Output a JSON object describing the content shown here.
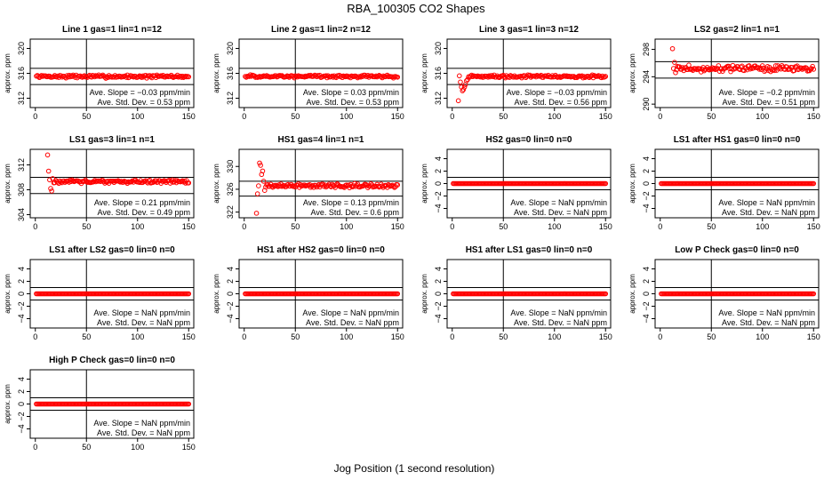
{
  "figure": {
    "title": "RBA_100305  CO2 Shapes",
    "xlabel": "Jog Position (1 second resolution)"
  },
  "colors": {
    "points": "#ff0000",
    "axes": "#000000"
  },
  "chart_data": [
    {
      "type": "scatter",
      "title": "Line 1 gas=1 lin=1 n=12",
      "ylabel": "approx. ppm",
      "xlim": [
        -5,
        155
      ],
      "xticks": [
        0,
        50,
        100,
        150
      ],
      "ylim": [
        310.5,
        321.5
      ],
      "yticks": [
        312,
        316,
        320
      ],
      "hlines": [
        316.8,
        314.2
      ],
      "vline": 50,
      "slope_text": "Ave. Slope = -0.03 ppm/min",
      "std_text": "Ave. Std. Dev. = 0.53 ppm",
      "series": [
        {
          "x_start": 1,
          "x_end": 150,
          "mean": 315.5,
          "noise": 0.3
        }
      ]
    },
    {
      "type": "scatter",
      "title": "Line 2 gas=1 lin=2 n=12",
      "ylabel": "approx. ppm",
      "xlim": [
        -5,
        155
      ],
      "xticks": [
        0,
        50,
        100,
        150
      ],
      "ylim": [
        310.5,
        321.5
      ],
      "yticks": [
        312,
        316,
        320
      ],
      "hlines": [
        316.8,
        314.2
      ],
      "vline": 50,
      "slope_text": "Ave. Slope = 0.03 ppm/min",
      "std_text": "Ave. Std. Dev. = 0.53 ppm",
      "series": [
        {
          "x_start": 1,
          "x_end": 150,
          "mean": 315.5,
          "noise": 0.28
        }
      ]
    },
    {
      "type": "scatter",
      "title": "Line 3 gas=1 lin=3 n=12",
      "ylabel": "approx. ppm",
      "xlim": [
        -5,
        155
      ],
      "xticks": [
        0,
        50,
        100,
        150
      ],
      "ylim": [
        310.5,
        321.5
      ],
      "yticks": [
        312,
        316,
        320
      ],
      "hlines": [
        316.8,
        314.2
      ],
      "vline": 50,
      "slope_text": "Ave. Slope = -0.03 ppm/min",
      "std_text": "Ave. Std. Dev. = 0.56 ppm",
      "series": [
        {
          "x_start": 6,
          "x_end": 150,
          "mean": 315.5,
          "noise": 0.28,
          "lead": [
            311.6,
            315.6,
            314.6,
            313.8,
            313.2,
            313.4,
            313.8,
            314.2,
            314.8,
            315.0
          ]
        }
      ]
    },
    {
      "type": "scatter",
      "title": "LS2 gas=2 lin=1 n=1",
      "ylabel": "approx. ppm",
      "xlim": [
        -5,
        155
      ],
      "xticks": [
        0,
        50,
        100,
        150
      ],
      "ylim": [
        289.5,
        299.5
      ],
      "yticks": [
        290,
        294,
        298
      ],
      "hlines": [
        296.2,
        293.8
      ],
      "vline": 50,
      "slope_text": "Ave. Slope = -0.2 ppm/min",
      "std_text": "Ave. Std. Dev. = 0.51 ppm",
      "series": [
        {
          "x_start": 12,
          "x_end": 150,
          "mean": 295.2,
          "noise": 0.55,
          "lead": [
            298.1,
            295.2,
            296.1,
            294.6
          ]
        }
      ]
    },
    {
      "type": "scatter",
      "title": "LS1 gas=3 lin=1 n=1",
      "ylabel": "approx. ppm",
      "xlim": [
        -5,
        155
      ],
      "xticks": [
        0,
        50,
        100,
        150
      ],
      "ylim": [
        303.5,
        314.5
      ],
      "yticks": [
        304,
        308,
        312
      ],
      "hlines": [
        310.0,
        307.4
      ],
      "vline": 50,
      "slope_text": "Ave. Slope = 0.21 ppm/min",
      "std_text": "Ave. Std. Dev. = 0.49 ppm",
      "series": [
        {
          "x_start": 12,
          "x_end": 150,
          "mean": 309.3,
          "noise": 0.35,
          "lead": [
            313.6,
            311.0,
            309.6,
            308.2,
            307.8,
            309.8
          ]
        }
      ]
    },
    {
      "type": "scatter",
      "title": "HS1 gas=4 lin=1 n=1",
      "ylabel": "approx. ppm",
      "xlim": [
        -5,
        155
      ],
      "xticks": [
        0,
        50,
        100,
        150
      ],
      "ylim": [
        321,
        333
      ],
      "yticks": [
        322,
        326,
        330
      ],
      "hlines": [
        327.4,
        324.8
      ],
      "vline": 50,
      "slope_text": "Ave. Slope = 0.13 ppm/min",
      "std_text": "Ave. Std. Dev. = 0.6 ppm",
      "series": [
        {
          "x_start": 12,
          "x_end": 150,
          "mean": 326.6,
          "noise": 0.42,
          "lead": [
            321.8,
            325.2,
            326.6,
            330.6,
            330.2,
            328.6,
            329.2,
            327.4,
            325.8,
            326.4
          ]
        }
      ]
    },
    {
      "type": "scatter",
      "title": "HS2 gas=0 lin=0 n=0",
      "ylabel": "approx. ppm",
      "xlim": [
        -5,
        155
      ],
      "xticks": [
        0,
        50,
        100,
        150
      ],
      "ylim": [
        -5.5,
        5.5
      ],
      "yticks": [
        -4,
        -2,
        0,
        2,
        4
      ],
      "hlines": [
        1,
        -1
      ],
      "vline": 50,
      "slope_text": "Ave. Slope = NaN ppm/min",
      "std_text": "Ave. Std. Dev. = NaN ppm",
      "series": [
        {
          "x_start": 1,
          "x_end": 150,
          "mean": 0,
          "noise": 0
        }
      ]
    },
    {
      "type": "scatter",
      "title": "LS1 after HS1 gas=0 lin=0 n=0",
      "ylabel": "approx. ppm",
      "xlim": [
        -5,
        155
      ],
      "xticks": [
        0,
        50,
        100,
        150
      ],
      "ylim": [
        -5.5,
        5.5
      ],
      "yticks": [
        -4,
        -2,
        0,
        2,
        4
      ],
      "hlines": [
        1,
        -1
      ],
      "vline": 50,
      "slope_text": "Ave. Slope = NaN ppm/min",
      "std_text": "Ave. Std. Dev. = NaN ppm",
      "series": [
        {
          "x_start": 1,
          "x_end": 150,
          "mean": 0,
          "noise": 0
        }
      ]
    },
    {
      "type": "scatter",
      "title": "LS1 after LS2 gas=0 lin=0 n=0",
      "ylabel": "approx. ppm",
      "xlim": [
        -5,
        155
      ],
      "xticks": [
        0,
        50,
        100,
        150
      ],
      "ylim": [
        -5.5,
        5.5
      ],
      "yticks": [
        -4,
        -2,
        0,
        2,
        4
      ],
      "hlines": [
        1,
        -1
      ],
      "vline": 50,
      "slope_text": "Ave. Slope = NaN ppm/min",
      "std_text": "Ave. Std. Dev. = NaN ppm",
      "series": [
        {
          "x_start": 1,
          "x_end": 150,
          "mean": 0,
          "noise": 0
        }
      ]
    },
    {
      "type": "scatter",
      "title": "HS1 after HS2 gas=0 lin=0 n=0",
      "ylabel": "approx. ppm",
      "xlim": [
        -5,
        155
      ],
      "xticks": [
        0,
        50,
        100,
        150
      ],
      "ylim": [
        -5.5,
        5.5
      ],
      "yticks": [
        -4,
        -2,
        0,
        2,
        4
      ],
      "hlines": [
        1,
        -1
      ],
      "vline": 50,
      "slope_text": "Ave. Slope = NaN ppm/min",
      "std_text": "Ave. Std. Dev. = NaN ppm",
      "series": [
        {
          "x_start": 1,
          "x_end": 150,
          "mean": 0,
          "noise": 0
        }
      ]
    },
    {
      "type": "scatter",
      "title": "HS1 after LS1 gas=0 lin=0 n=0",
      "ylabel": "approx. ppm",
      "xlim": [
        -5,
        155
      ],
      "xticks": [
        0,
        50,
        100,
        150
      ],
      "ylim": [
        -5.5,
        5.5
      ],
      "yticks": [
        -4,
        -2,
        0,
        2,
        4
      ],
      "hlines": [
        1,
        -1
      ],
      "vline": 50,
      "slope_text": "Ave. Slope = NaN ppm/min",
      "std_text": "Ave. Std. Dev. = NaN ppm",
      "series": [
        {
          "x_start": 1,
          "x_end": 150,
          "mean": 0,
          "noise": 0
        }
      ]
    },
    {
      "type": "scatter",
      "title": "Low P Check gas=0 lin=0 n=0",
      "ylabel": "approx. ppm",
      "xlim": [
        -5,
        155
      ],
      "xticks": [
        0,
        50,
        100,
        150
      ],
      "ylim": [
        -5.5,
        5.5
      ],
      "yticks": [
        -4,
        -2,
        0,
        2,
        4
      ],
      "hlines": [
        1,
        -1
      ],
      "vline": 50,
      "slope_text": "Ave. Slope = NaN ppm/min",
      "std_text": "Ave. Std. Dev. = NaN ppm",
      "series": [
        {
          "x_start": 1,
          "x_end": 150,
          "mean": 0,
          "noise": 0
        }
      ]
    },
    {
      "type": "scatter",
      "title": "High P Check gas=0 lin=0 n=0",
      "ylabel": "approx. ppm",
      "xlim": [
        -5,
        155
      ],
      "xticks": [
        0,
        50,
        100,
        150
      ],
      "ylim": [
        -5.5,
        5.5
      ],
      "yticks": [
        -4,
        -2,
        0,
        2,
        4
      ],
      "hlines": [
        1,
        -1
      ],
      "vline": 50,
      "slope_text": "Ave. Slope = NaN ppm/min",
      "std_text": "Ave. Std. Dev. = NaN ppm",
      "series": [
        {
          "x_start": 1,
          "x_end": 150,
          "mean": 0,
          "noise": 0
        }
      ]
    }
  ]
}
